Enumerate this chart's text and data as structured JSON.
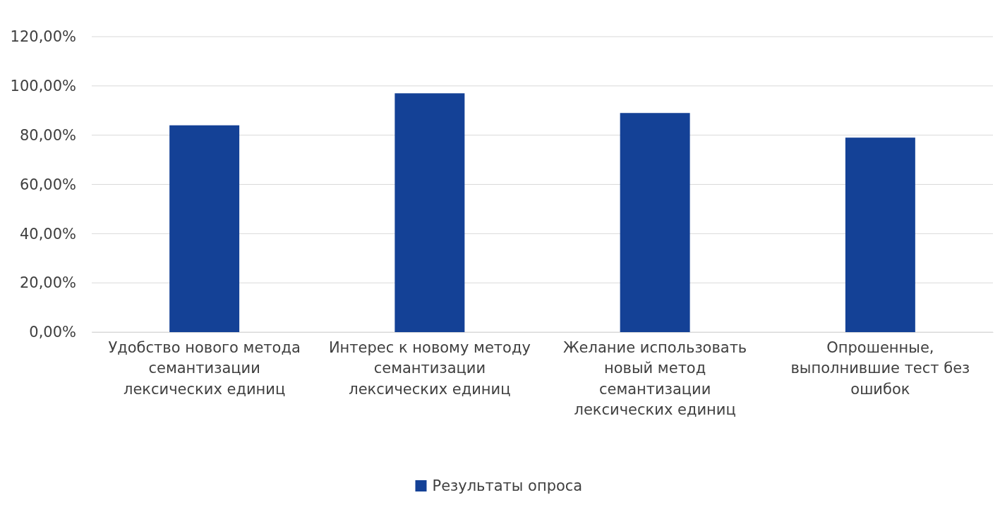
{
  "chart_data": {
    "type": "bar",
    "categories": [
      "Удобство нового метода семантизации лексических единиц",
      "Интерес к новому методу семантизации лексических единиц",
      "Желание использовать новый метод семантизации лексических единиц",
      "Опрошенные, выполнившие тест без ошибок"
    ],
    "series": [
      {
        "name": "Результаты опроса",
        "color": "#144196",
        "values": [
          84,
          97,
          89,
          79
        ]
      }
    ],
    "ylim": [
      0,
      120
    ],
    "yticks": [
      {
        "value": 0,
        "label": "0,00%"
      },
      {
        "value": 20,
        "label": "20,00%"
      },
      {
        "value": 40,
        "label": "40,00%"
      },
      {
        "value": 60,
        "label": "60,00%"
      },
      {
        "value": 80,
        "label": "80,00%"
      },
      {
        "value": 100,
        "label": "100,00%"
      },
      {
        "value": 120,
        "label": "120,00%"
      }
    ],
    "grid": "y",
    "legend": "bottom"
  }
}
